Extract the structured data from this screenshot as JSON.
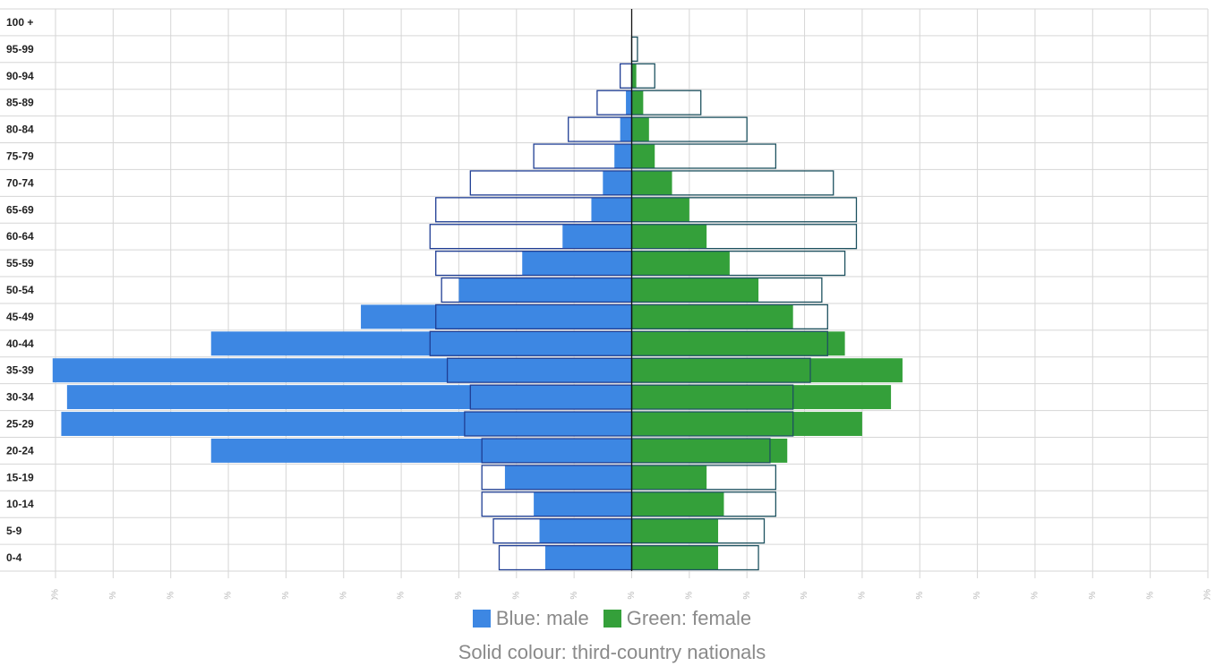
{
  "chart_data": {
    "type": "bar",
    "orientation": "horizontal-population-pyramid",
    "categories": [
      "0-4",
      "5-9",
      "10-14",
      "15-19",
      "20-24",
      "25-29",
      "30-34",
      "35-39",
      "40-44",
      "45-49",
      "50-54",
      "55-59",
      "60-64",
      "65-69",
      "70-74",
      "75-79",
      "80-84",
      "85-89",
      "90-94",
      "95-99",
      "100 +"
    ],
    "series": [
      {
        "name": "Blue: male",
        "kind": "third-country nationals (solid)",
        "side": "left",
        "color": "#3d87e3",
        "values": [
          1.5,
          1.6,
          1.7,
          2.2,
          7.3,
          9.9,
          9.8,
          10.05,
          7.3,
          4.7,
          3.0,
          1.9,
          1.2,
          0.7,
          0.5,
          0.3,
          0.2,
          0.1,
          0.0,
          0.0,
          0.0
        ]
      },
      {
        "side": "left",
        "color": "#1f3e94",
        "values": [
          2.3,
          2.4,
          2.6,
          2.6,
          2.6,
          2.9,
          2.8,
          3.2,
          3.5,
          3.4,
          3.3,
          3.4,
          3.5,
          3.4,
          2.8,
          1.7,
          1.1,
          0.6,
          0.2,
          0.0,
          0.0
        ]
      },
      {
        "name": "Green: female",
        "kind": "third-country nationals (solid)",
        "side": "right",
        "color": "#34a03a",
        "values": [
          1.5,
          1.5,
          1.6,
          1.3,
          2.7,
          4.0,
          4.5,
          4.7,
          3.7,
          2.8,
          2.2,
          1.7,
          1.3,
          1.0,
          0.7,
          0.4,
          0.3,
          0.2,
          0.08,
          0.0,
          0.0
        ]
      },
      {
        "side": "right",
        "color": "#1e5260",
        "values": [
          2.2,
          2.3,
          2.5,
          2.5,
          2.4,
          2.8,
          2.8,
          3.1,
          3.4,
          3.4,
          3.3,
          3.7,
          3.9,
          3.9,
          3.5,
          2.5,
          2.0,
          1.2,
          0.4,
          0.1,
          0.0
        ]
      }
    ],
    "xlim": [
      -10,
      10
    ],
    "xticks": [
      "10%",
      "9%",
      "8%",
      "7%",
      "6%",
      "5%",
      "4%",
      "3%",
      "2%",
      "1%",
      "0%",
      "1%",
      "2%",
      "3%",
      "4%",
      "5%",
      "6%",
      "7%",
      "8%",
      "9%",
      "10%"
    ],
    "grid": true,
    "legend": {
      "position": "bottom-center",
      "items": [
        {
          "label": "Blue: male",
          "color": "#3d87e3"
        },
        {
          "label": "Green: female",
          "color": "#34a03a"
        }
      ],
      "note": "Solid colour: third-country nationals"
    }
  }
}
